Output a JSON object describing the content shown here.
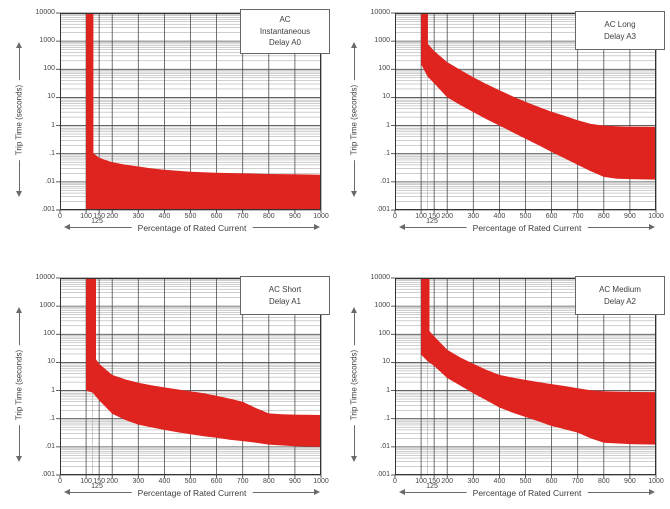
{
  "colors": {
    "band": "#df2420",
    "grid_major": "#4d4d4d",
    "grid_minor": "#9e9e9e",
    "axis": "#333333",
    "text": "#3d3d3d"
  },
  "axes": {
    "y_label": "Trip Time (seconds)",
    "x_label": "Percentage of Rated Current",
    "x_annotation": "125",
    "y_ticks": [
      "10000",
      "1000",
      "100",
      "10",
      "1",
      ".1",
      ".01",
      ".001"
    ],
    "x_ticks": [
      "0",
      "100",
      "150",
      "200",
      "300",
      "400",
      "500",
      "600",
      "700",
      "800",
      "900",
      "1000"
    ],
    "x_tick_values": [
      0,
      100,
      150,
      200,
      300,
      400,
      500,
      600,
      700,
      800,
      900,
      1000
    ],
    "x_gridlines": [
      100,
      125,
      150,
      200,
      300,
      400,
      500,
      600,
      700,
      800,
      900,
      1000
    ],
    "y_log_min_exp": -3,
    "y_log_max_exp": 4,
    "x_min": 0,
    "x_max": 1000,
    "grid": "on"
  },
  "chart_data": [
    {
      "type": "area",
      "title_lines": [
        "AC",
        "Instantaneous",
        "Delay A0"
      ],
      "band": {
        "upper": [
          [
            100,
            10000
          ],
          [
            128,
            10000
          ],
          [
            128,
            0.105
          ],
          [
            150,
            0.072
          ],
          [
            200,
            0.05
          ],
          [
            250,
            0.041
          ],
          [
            300,
            0.035
          ],
          [
            350,
            0.03
          ],
          [
            400,
            0.027
          ],
          [
            500,
            0.023
          ],
          [
            600,
            0.021
          ],
          [
            700,
            0.02
          ],
          [
            800,
            0.019
          ],
          [
            900,
            0.0185
          ],
          [
            1000,
            0.018
          ]
        ],
        "lower": [
          [
            100,
            0.001
          ],
          [
            1000,
            0.001
          ]
        ]
      }
    },
    {
      "type": "area",
      "title_lines": [
        "AC Long",
        "Delay A3"
      ],
      "band": {
        "upper": [
          [
            100,
            10000
          ],
          [
            126,
            10000
          ],
          [
            126,
            800
          ],
          [
            150,
            450
          ],
          [
            200,
            180
          ],
          [
            250,
            95
          ],
          [
            300,
            52
          ],
          [
            350,
            30
          ],
          [
            400,
            18
          ],
          [
            450,
            11
          ],
          [
            500,
            7
          ],
          [
            550,
            4.6
          ],
          [
            600,
            3.1
          ],
          [
            650,
            2.2
          ],
          [
            700,
            1.55
          ],
          [
            750,
            1.15
          ],
          [
            800,
            1.0
          ],
          [
            850,
            0.95
          ],
          [
            900,
            0.92
          ],
          [
            1000,
            0.9
          ]
        ],
        "lower": [
          [
            100,
            150
          ],
          [
            125,
            55
          ],
          [
            150,
            32
          ],
          [
            200,
            10
          ],
          [
            250,
            5.4
          ],
          [
            300,
            3.0
          ],
          [
            350,
            1.7
          ],
          [
            400,
            1.0
          ],
          [
            450,
            0.58
          ],
          [
            500,
            0.34
          ],
          [
            550,
            0.2
          ],
          [
            600,
            0.115
          ],
          [
            650,
            0.068
          ],
          [
            700,
            0.04
          ],
          [
            750,
            0.024
          ],
          [
            800,
            0.015
          ],
          [
            850,
            0.013
          ],
          [
            900,
            0.0125
          ],
          [
            1000,
            0.012
          ]
        ]
      }
    },
    {
      "type": "area",
      "title_lines": [
        "AC Short",
        "Delay A1"
      ],
      "band": {
        "upper": [
          [
            100,
            10000
          ],
          [
            138,
            10000
          ],
          [
            138,
            13
          ],
          [
            150,
            9
          ],
          [
            200,
            3.6
          ],
          [
            250,
            2.5
          ],
          [
            300,
            1.9
          ],
          [
            350,
            1.55
          ],
          [
            400,
            1.3
          ],
          [
            450,
            1.1
          ],
          [
            500,
            0.95
          ],
          [
            550,
            0.8
          ],
          [
            600,
            0.65
          ],
          [
            650,
            0.52
          ],
          [
            700,
            0.4
          ],
          [
            750,
            0.24
          ],
          [
            800,
            0.155
          ],
          [
            850,
            0.145
          ],
          [
            900,
            0.14
          ],
          [
            1000,
            0.135
          ]
        ],
        "lower": [
          [
            100,
            1.0
          ],
          [
            125,
            0.85
          ],
          [
            150,
            0.45
          ],
          [
            200,
            0.15
          ],
          [
            250,
            0.09
          ],
          [
            300,
            0.062
          ],
          [
            350,
            0.049
          ],
          [
            400,
            0.04
          ],
          [
            450,
            0.033
          ],
          [
            500,
            0.028
          ],
          [
            550,
            0.024
          ],
          [
            600,
            0.021
          ],
          [
            650,
            0.018
          ],
          [
            700,
            0.016
          ],
          [
            750,
            0.014
          ],
          [
            800,
            0.012
          ],
          [
            900,
            0.0105
          ],
          [
            1000,
            0.01
          ]
        ]
      }
    },
    {
      "type": "area",
      "title_lines": [
        "AC Medium",
        "Delay A2"
      ],
      "band": {
        "upper": [
          [
            100,
            10000
          ],
          [
            132,
            10000
          ],
          [
            132,
            130
          ],
          [
            150,
            85
          ],
          [
            200,
            28
          ],
          [
            250,
            15
          ],
          [
            300,
            9
          ],
          [
            350,
            5.5
          ],
          [
            400,
            3.6
          ],
          [
            450,
            2.9
          ],
          [
            500,
            2.4
          ],
          [
            550,
            2.0
          ],
          [
            600,
            1.7
          ],
          [
            650,
            1.45
          ],
          [
            700,
            1.2
          ],
          [
            750,
            1.02
          ],
          [
            800,
            0.95
          ],
          [
            900,
            0.9
          ],
          [
            1000,
            0.88
          ]
        ],
        "lower": [
          [
            100,
            19
          ],
          [
            125,
            11
          ],
          [
            150,
            7.5
          ],
          [
            200,
            2.8
          ],
          [
            250,
            1.5
          ],
          [
            300,
            0.8
          ],
          [
            350,
            0.45
          ],
          [
            400,
            0.25
          ],
          [
            450,
            0.165
          ],
          [
            500,
            0.115
          ],
          [
            550,
            0.08
          ],
          [
            600,
            0.055
          ],
          [
            650,
            0.042
          ],
          [
            700,
            0.032
          ],
          [
            750,
            0.02
          ],
          [
            800,
            0.014
          ],
          [
            900,
            0.0125
          ],
          [
            1000,
            0.012
          ]
        ]
      }
    }
  ]
}
